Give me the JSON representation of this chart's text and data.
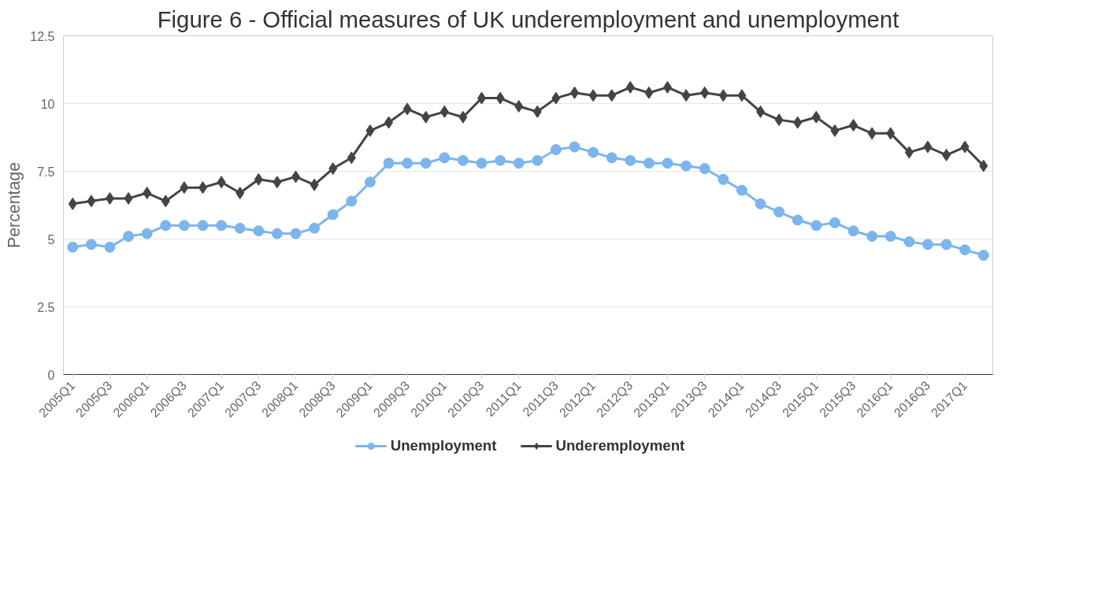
{
  "chart_data": {
    "type": "line",
    "title": "Figure 6 - Official measures of UK underemployment and unemployment",
    "ylabel": "Percentage",
    "categories": [
      "2005Q1",
      null,
      "2005Q3",
      null,
      "2006Q1",
      null,
      "2006Q3",
      null,
      "2007Q1",
      null,
      "2007Q3",
      null,
      "2008Q1",
      null,
      "2008Q3",
      null,
      "2009Q1",
      null,
      "2009Q3",
      null,
      "2010Q1",
      null,
      "2010Q3",
      null,
      "2011Q1",
      null,
      "2011Q3",
      null,
      "2012Q1",
      null,
      "2012Q3",
      null,
      "2013Q1",
      null,
      "2013Q3",
      null,
      "2014Q1",
      null,
      "2014Q3",
      null,
      "2015Q1",
      null,
      "2015Q3",
      null,
      "2016Q1",
      null,
      "2016Q3",
      null,
      "2017Q1",
      null
    ],
    "series": [
      {
        "name": "Unemployment",
        "color": "#7cb5ec",
        "marker": "circle",
        "values": [
          4.7,
          4.8,
          4.7,
          5.1,
          5.2,
          5.5,
          5.5,
          5.5,
          5.5,
          5.4,
          5.3,
          5.2,
          5.2,
          5.4,
          5.9,
          6.4,
          7.1,
          7.8,
          7.8,
          7.8,
          8.0,
          7.9,
          7.8,
          7.9,
          7.8,
          7.9,
          8.3,
          8.4,
          8.2,
          8.0,
          7.9,
          7.8,
          7.8,
          7.7,
          7.6,
          7.2,
          6.8,
          6.3,
          6.0,
          5.7,
          5.5,
          5.6,
          5.3,
          5.1,
          5.1,
          4.9,
          4.8,
          4.8,
          4.6,
          4.4
        ]
      },
      {
        "name": "Underemployment",
        "color": "#434348",
        "marker": "diamond",
        "values": [
          6.3,
          6.4,
          6.5,
          6.5,
          6.7,
          6.4,
          6.9,
          6.9,
          7.1,
          6.7,
          7.2,
          7.1,
          7.3,
          7.0,
          7.6,
          8.0,
          9.0,
          9.3,
          9.8,
          9.5,
          9.7,
          9.5,
          10.2,
          10.2,
          9.9,
          9.7,
          10.2,
          10.4,
          10.3,
          10.3,
          10.6,
          10.4,
          10.6,
          10.3,
          10.4,
          10.3,
          10.3,
          9.7,
          9.4,
          9.3,
          9.5,
          9.0,
          9.2,
          8.9,
          8.9,
          8.2,
          8.4,
          8.1,
          8.4,
          7.7
        ]
      }
    ],
    "ylim": [
      0,
      12.5
    ],
    "yticks": [
      0,
      2.5,
      5,
      7.5,
      10,
      12.5
    ],
    "grid": "y",
    "legend": "bottom"
  }
}
